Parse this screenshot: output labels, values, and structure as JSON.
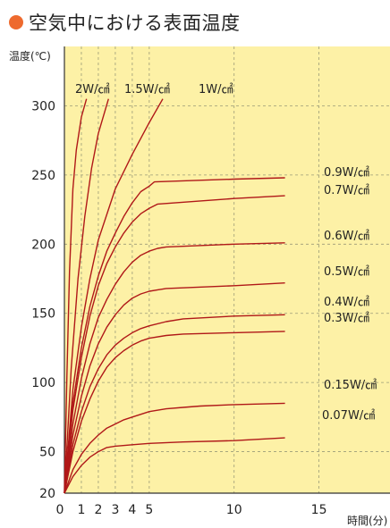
{
  "header": {
    "title": "空気中における表面温度",
    "bullet_color": "#ee6a2e"
  },
  "chart_data": {
    "type": "line",
    "title": "空気中における表面温度",
    "ylabel": "温度(℃)",
    "xlabel": "時間(分)",
    "xlim": [
      0,
      17.5
    ],
    "ylim": [
      20,
      310
    ],
    "x_ticks": [
      0,
      1,
      2,
      3,
      4,
      5,
      10,
      15
    ],
    "y_ticks": [
      20,
      50,
      100,
      150,
      200,
      250,
      300
    ],
    "grid": true,
    "background_color": "#fdf1a6",
    "line_color": "#b01818",
    "series": [
      {
        "name": "2W/㎠",
        "x": [
          0,
          0.15,
          0.3,
          0.5,
          0.7,
          1.0,
          1.3
        ],
        "y": [
          20,
          105,
          180,
          240,
          268,
          292,
          305
        ]
      },
      {
        "name": "1.5W/㎠",
        "x": [
          0,
          0.4,
          0.8,
          1.2,
          1.6,
          2.0,
          2.6
        ],
        "y": [
          20,
          110,
          175,
          220,
          255,
          280,
          305
        ]
      },
      {
        "name": "1W/㎠",
        "x": [
          0,
          0.5,
          1.0,
          1.5,
          2.0,
          3.0,
          4.0,
          5.0,
          5.8
        ],
        "y": [
          20,
          95,
          140,
          175,
          203,
          240,
          265,
          288,
          305
        ]
      },
      {
        "name": "0.9W/㎠",
        "x": [
          0,
          0.5,
          1.0,
          1.5,
          2.0,
          2.5,
          3.0,
          3.5,
          4.0,
          4.5,
          5.0,
          5.3,
          10.0,
          13.0
        ],
        "y": [
          20,
          85,
          125,
          155,
          177,
          195,
          208,
          220,
          230,
          238,
          242,
          245,
          247,
          248
        ]
      },
      {
        "name": "0.7W/㎠",
        "x": [
          0,
          0.5,
          1.0,
          1.5,
          2.0,
          2.5,
          3.0,
          3.5,
          4.0,
          4.5,
          5.0,
          5.5,
          10.0,
          13.0
        ],
        "y": [
          20,
          80,
          118,
          148,
          170,
          186,
          198,
          208,
          216,
          222,
          226,
          229,
          233,
          235
        ]
      },
      {
        "name": "0.6W/㎠",
        "x": [
          0,
          0.5,
          1.0,
          1.5,
          2.0,
          2.5,
          3.0,
          3.5,
          4.0,
          4.5,
          5.0,
          5.5,
          6.0,
          10.0,
          13.0
        ],
        "y": [
          20,
          70,
          103,
          128,
          147,
          160,
          171,
          180,
          187,
          192,
          195,
          197,
          198,
          200,
          201
        ]
      },
      {
        "name": "0.5W/㎠",
        "x": [
          0,
          0.5,
          1.0,
          1.5,
          2.0,
          2.5,
          3.0,
          3.5,
          4.0,
          4.5,
          5.0,
          5.5,
          6.0,
          10.0,
          13.0
        ],
        "y": [
          20,
          62,
          90,
          112,
          128,
          140,
          149,
          156,
          161,
          164,
          166,
          167,
          168,
          170,
          172
        ]
      },
      {
        "name": "0.4W/㎠",
        "x": [
          0,
          0.5,
          1.0,
          1.5,
          2.0,
          2.5,
          3.0,
          3.5,
          4.0,
          4.5,
          5.0,
          6.0,
          7.0,
          10.0,
          13.0
        ],
        "y": [
          20,
          55,
          79,
          97,
          110,
          120,
          127,
          132,
          136,
          139,
          141,
          144,
          146,
          148,
          149
        ]
      },
      {
        "name": "0.3W/㎠",
        "x": [
          0,
          0.5,
          1.0,
          1.5,
          2.0,
          2.5,
          3.0,
          3.5,
          4.0,
          4.5,
          5.0,
          6.0,
          7.0,
          10.0,
          13.0
        ],
        "y": [
          20,
          50,
          72,
          88,
          101,
          111,
          118,
          123,
          127,
          130,
          132,
          134,
          135,
          136,
          137
        ]
      },
      {
        "name": "0.15W/㎠",
        "x": [
          0,
          0.5,
          1.0,
          1.5,
          2.0,
          2.5,
          3.0,
          3.5,
          4.0,
          5.0,
          6.0,
          7.0,
          8.0,
          10.0,
          13.0
        ],
        "y": [
          20,
          37,
          48,
          56,
          62,
          67,
          70,
          73,
          75,
          79,
          81,
          82,
          83,
          84,
          85
        ]
      },
      {
        "name": "0.07W/㎠",
        "x": [
          0,
          0.5,
          1.0,
          1.5,
          2.0,
          2.5,
          3.0,
          4.0,
          5.0,
          7.0,
          10.0,
          13.0
        ],
        "y": [
          20,
          32,
          40,
          46,
          50,
          53,
          54,
          55,
          56,
          57,
          58,
          60
        ]
      }
    ]
  }
}
